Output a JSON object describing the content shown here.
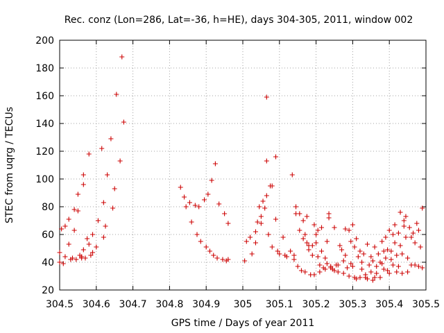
{
  "chart_data": {
    "type": "scatter",
    "title": "Rec. conz (Lon=286, Lat=-36, h=HE), days 304-305, 2011, window 002",
    "xlabel": "GPS time / Days of year 2011",
    "ylabel": "STEC from uqrg / TECUs",
    "xlim": [
      304.5,
      305.5
    ],
    "ylim": [
      20,
      200
    ],
    "xticks": [
      304.5,
      304.6,
      304.7,
      304.8,
      304.9,
      305,
      305.1,
      305.2,
      305.3,
      305.4,
      305.5
    ],
    "xtick_labels": [
      "304.5",
      "304.6",
      "304.7",
      "304.8",
      "304.9",
      "305",
      "305.1",
      "305.2",
      "305.3",
      "305.4",
      "305.5"
    ],
    "yticks": [
      20,
      40,
      60,
      80,
      100,
      120,
      140,
      160,
      180,
      200
    ],
    "ytick_labels": [
      "20",
      "40",
      "60",
      "80",
      "100",
      "120",
      "140",
      "160",
      "180",
      "200"
    ],
    "grid": true,
    "marker": "+",
    "color": "#cc0000",
    "points": [
      [
        304.5,
        47
      ],
      [
        304.5,
        40
      ],
      [
        304.505,
        64
      ],
      [
        304.51,
        39
      ],
      [
        304.515,
        66
      ],
      [
        304.515,
        44
      ],
      [
        304.525,
        71
      ],
      [
        304.525,
        53
      ],
      [
        304.53,
        42
      ],
      [
        304.535,
        43
      ],
      [
        304.54,
        63
      ],
      [
        304.54,
        78
      ],
      [
        304.545,
        42
      ],
      [
        304.55,
        77
      ],
      [
        304.55,
        89
      ],
      [
        304.555,
        45
      ],
      [
        304.56,
        44
      ],
      [
        304.56,
        43
      ],
      [
        304.565,
        103
      ],
      [
        304.565,
        96
      ],
      [
        304.565,
        49
      ],
      [
        304.57,
        43
      ],
      [
        304.575,
        57
      ],
      [
        304.58,
        118
      ],
      [
        304.58,
        53
      ],
      [
        304.585,
        45
      ],
      [
        304.59,
        47
      ],
      [
        304.59,
        60
      ],
      [
        304.6,
        51
      ],
      [
        304.605,
        70
      ],
      [
        304.615,
        122
      ],
      [
        304.62,
        83
      ],
      [
        304.62,
        58
      ],
      [
        304.625,
        66
      ],
      [
        304.63,
        103
      ],
      [
        304.64,
        129
      ],
      [
        304.645,
        79
      ],
      [
        304.65,
        93
      ],
      [
        304.655,
        161
      ],
      [
        304.665,
        113
      ],
      [
        304.67,
        188
      ],
      [
        304.675,
        141
      ],
      [
        304.83,
        94
      ],
      [
        304.84,
        87
      ],
      [
        304.845,
        80
      ],
      [
        304.855,
        83
      ],
      [
        304.86,
        69
      ],
      [
        304.87,
        81
      ],
      [
        304.875,
        60
      ],
      [
        304.88,
        80
      ],
      [
        304.885,
        55
      ],
      [
        304.895,
        85
      ],
      [
        304.9,
        51
      ],
      [
        304.905,
        89
      ],
      [
        304.91,
        48
      ],
      [
        304.915,
        99
      ],
      [
        304.92,
        45
      ],
      [
        304.925,
        111
      ],
      [
        304.93,
        43
      ],
      [
        304.935,
        82
      ],
      [
        304.945,
        42
      ],
      [
        304.95,
        75
      ],
      [
        304.955,
        41
      ],
      [
        304.96,
        68
      ],
      [
        304.96,
        42
      ],
      [
        305.005,
        41
      ],
      [
        305.01,
        55
      ],
      [
        305.02,
        58
      ],
      [
        305.025,
        46
      ],
      [
        305.035,
        62
      ],
      [
        305.035,
        54
      ],
      [
        305.04,
        69
      ],
      [
        305.045,
        80
      ],
      [
        305.05,
        73
      ],
      [
        305.05,
        68
      ],
      [
        305.055,
        84
      ],
      [
        305.06,
        79
      ],
      [
        305.065,
        159
      ],
      [
        305.065,
        113
      ],
      [
        305.065,
        88
      ],
      [
        305.07,
        60
      ],
      [
        305.075,
        95
      ],
      [
        305.08,
        95
      ],
      [
        305.08,
        51
      ],
      [
        305.09,
        116
      ],
      [
        305.09,
        71
      ],
      [
        305.095,
        48
      ],
      [
        305.1,
        46
      ],
      [
        305.11,
        58
      ],
      [
        305.115,
        45
      ],
      [
        305.12,
        44
      ],
      [
        305.13,
        48
      ],
      [
        305.135,
        103
      ],
      [
        305.14,
        42
      ],
      [
        305.14,
        45
      ],
      [
        305.145,
        80
      ],
      [
        305.145,
        75
      ],
      [
        305.15,
        37
      ],
      [
        305.155,
        63
      ],
      [
        305.155,
        75
      ],
      [
        305.16,
        34
      ],
      [
        305.165,
        70
      ],
      [
        305.165,
        57
      ],
      [
        305.17,
        33
      ],
      [
        305.17,
        60
      ],
      [
        305.175,
        54
      ],
      [
        305.175,
        73
      ],
      [
        305.18,
        52
      ],
      [
        305.18,
        49
      ],
      [
        305.185,
        31
      ],
      [
        305.19,
        52
      ],
      [
        305.19,
        45
      ],
      [
        305.195,
        67
      ],
      [
        305.195,
        31
      ],
      [
        305.2,
        60
      ],
      [
        305.2,
        54
      ],
      [
        305.205,
        44
      ],
      [
        305.205,
        63
      ],
      [
        305.21,
        38
      ],
      [
        305.21,
        33
      ],
      [
        305.215,
        48
      ],
      [
        305.215,
        65
      ],
      [
        305.22,
        36
      ],
      [
        305.225,
        35
      ],
      [
        305.225,
        43
      ],
      [
        305.23,
        39
      ],
      [
        305.23,
        55
      ],
      [
        305.235,
        75
      ],
      [
        305.235,
        72
      ],
      [
        305.24,
        36
      ],
      [
        305.24,
        37
      ],
      [
        305.245,
        35
      ],
      [
        305.25,
        34
      ],
      [
        305.25,
        65
      ],
      [
        305.255,
        38
      ],
      [
        305.26,
        38
      ],
      [
        305.26,
        33
      ],
      [
        305.265,
        52
      ],
      [
        305.27,
        49
      ],
      [
        305.275,
        32
      ],
      [
        305.275,
        41
      ],
      [
        305.28,
        64
      ],
      [
        305.28,
        45
      ],
      [
        305.285,
        36
      ],
      [
        305.29,
        30
      ],
      [
        305.29,
        63
      ],
      [
        305.295,
        39
      ],
      [
        305.295,
        55
      ],
      [
        305.3,
        67
      ],
      [
        305.3,
        37
      ],
      [
        305.305,
        29
      ],
      [
        305.305,
        51
      ],
      [
        305.31,
        57
      ],
      [
        305.31,
        28
      ],
      [
        305.315,
        44
      ],
      [
        305.32,
        29
      ],
      [
        305.32,
        48
      ],
      [
        305.325,
        40
      ],
      [
        305.325,
        35
      ],
      [
        305.33,
        46
      ],
      [
        305.335,
        31
      ],
      [
        305.335,
        29
      ],
      [
        305.34,
        53
      ],
      [
        305.34,
        28
      ],
      [
        305.345,
        38
      ],
      [
        305.35,
        44
      ],
      [
        305.35,
        33
      ],
      [
        305.355,
        41
      ],
      [
        305.355,
        27
      ],
      [
        305.36,
        51
      ],
      [
        305.36,
        29
      ],
      [
        305.365,
        37
      ],
      [
        305.365,
        32
      ],
      [
        305.37,
        46
      ],
      [
        305.375,
        29
      ],
      [
        305.375,
        40
      ],
      [
        305.38,
        55
      ],
      [
        305.38,
        39
      ],
      [
        305.385,
        48
      ],
      [
        305.385,
        35
      ],
      [
        305.39,
        58
      ],
      [
        305.39,
        43
      ],
      [
        305.395,
        49
      ],
      [
        305.395,
        34
      ],
      [
        305.4,
        63
      ],
      [
        305.4,
        32
      ],
      [
        305.405,
        48
      ],
      [
        305.405,
        42
      ],
      [
        305.41,
        60
      ],
      [
        305.41,
        38
      ],
      [
        305.415,
        67
      ],
      [
        305.415,
        54
      ],
      [
        305.42,
        45
      ],
      [
        305.42,
        33
      ],
      [
        305.425,
        61
      ],
      [
        305.425,
        37
      ],
      [
        305.43,
        76
      ],
      [
        305.43,
        52
      ],
      [
        305.435,
        46
      ],
      [
        305.435,
        32
      ],
      [
        305.44,
        70
      ],
      [
        305.44,
        66
      ],
      [
        305.445,
        73
      ],
      [
        305.445,
        58
      ],
      [
        305.45,
        43
      ],
      [
        305.45,
        33
      ],
      [
        305.455,
        65
      ],
      [
        305.46,
        58
      ],
      [
        305.46,
        38
      ],
      [
        305.465,
        61
      ],
      [
        305.47,
        54
      ],
      [
        305.47,
        38
      ],
      [
        305.475,
        68
      ],
      [
        305.48,
        63
      ],
      [
        305.48,
        37
      ],
      [
        305.485,
        51
      ],
      [
        305.49,
        79
      ],
      [
        305.49,
        36
      ]
    ]
  }
}
